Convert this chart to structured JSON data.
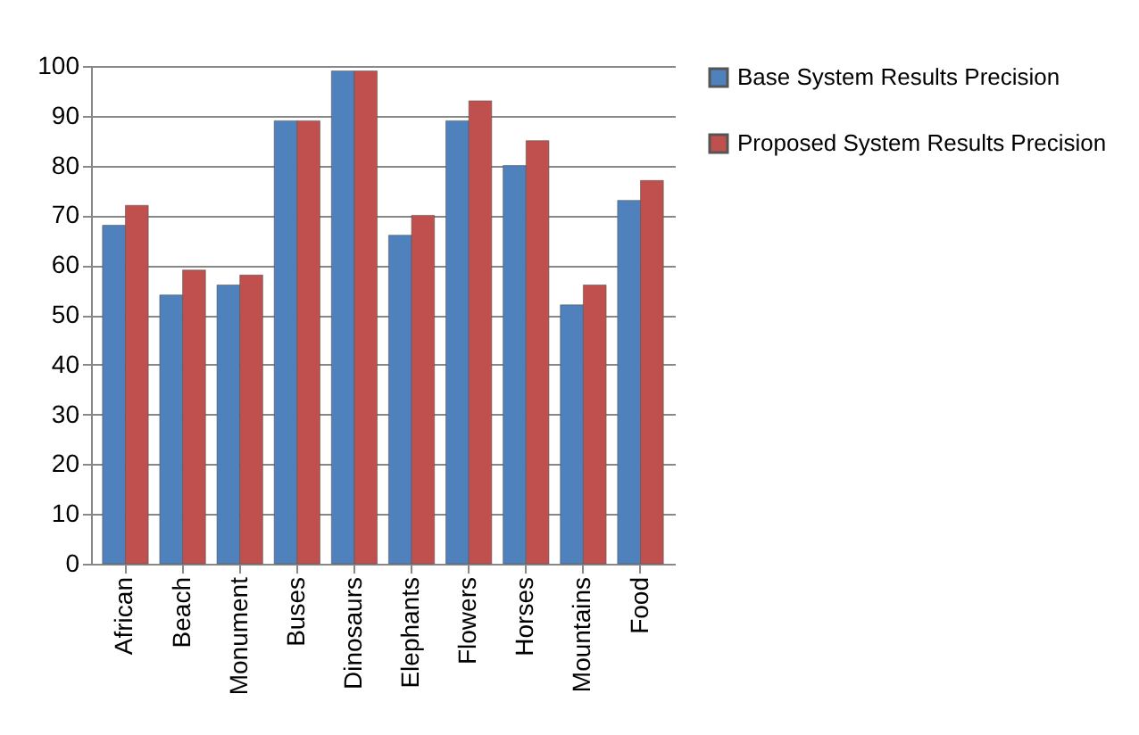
{
  "chart_data": {
    "type": "bar",
    "categories": [
      "African",
      "Beach",
      "Monument",
      "Buses",
      "Dinosaurs",
      "Elephants",
      "Flowers",
      "Horses",
      "Mountains",
      "Food"
    ],
    "series": [
      {
        "name": "Base System Results Precision",
        "color": "#4f81bd",
        "values": [
          68,
          54,
          56,
          89,
          99,
          66,
          89,
          80,
          52,
          73
        ]
      },
      {
        "name": "Proposed System Results Precision",
        "color": "#c0504d",
        "values": [
          72,
          59,
          58,
          89,
          99,
          70,
          93,
          85,
          56,
          77
        ]
      }
    ],
    "ylim": [
      0,
      100
    ],
    "yticks": [
      0,
      10,
      20,
      30,
      40,
      50,
      60,
      70,
      80,
      90,
      100
    ],
    "grid": "y",
    "legend": "right"
  }
}
